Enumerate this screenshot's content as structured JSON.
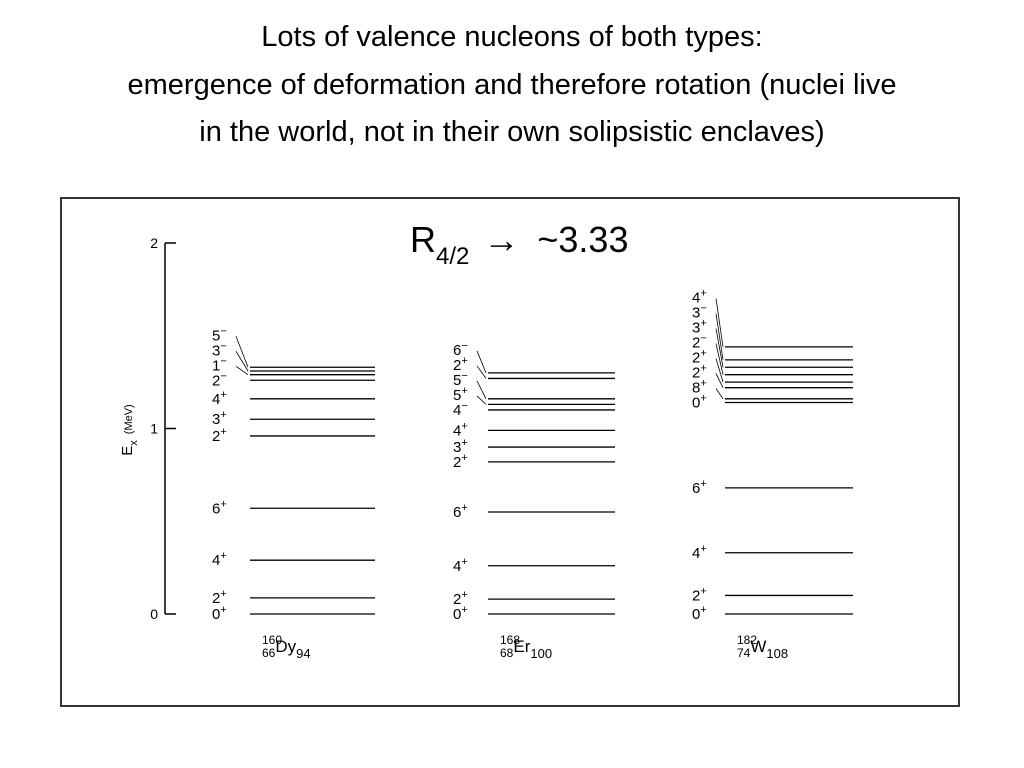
{
  "title": {
    "lines": [
      "Lots of valence nucleons of both types:",
      "emergence of deformation and therefore rotation (nuclei live",
      "in the world, not in their own solipsistic enclaves)"
    ]
  },
  "annotation": {
    "symbol": "R",
    "subscript": "4/2",
    "arrow": "→",
    "value": "~3.33"
  },
  "axis": {
    "symbol": "E",
    "subscript": "x",
    "unit": "(MeV)",
    "ylim": [
      0,
      2
    ],
    "ticks": [
      0,
      1,
      2
    ]
  },
  "nuclei": [
    {
      "mass": "160",
      "z": "66",
      "symbol": "Dy",
      "n": "94",
      "levels": [
        {
          "spin": "0",
          "parity": "+",
          "energy": 0
        },
        {
          "spin": "2",
          "parity": "+",
          "energy": 0.087
        },
        {
          "spin": "4",
          "parity": "+",
          "energy": 0.29
        },
        {
          "spin": "6",
          "parity": "+",
          "energy": 0.57
        },
        {
          "spin": "2",
          "parity": "+",
          "energy": 0.96
        },
        {
          "spin": "3",
          "parity": "+",
          "energy": 1.05
        },
        {
          "spin": "4",
          "parity": "+",
          "energy": 1.16
        },
        {
          "spin": "2",
          "parity": "−",
          "energy": 1.26
        },
        {
          "spin": "1",
          "parity": "−",
          "energy": 1.29
        },
        {
          "spin": "3",
          "parity": "−",
          "energy": 1.31
        },
        {
          "spin": "5",
          "parity": "−",
          "energy": 1.33
        }
      ]
    },
    {
      "mass": "168",
      "z": "68",
      "symbol": "Er",
      "n": "100",
      "levels": [
        {
          "spin": "0",
          "parity": "+",
          "energy": 0
        },
        {
          "spin": "2",
          "parity": "+",
          "energy": 0.08
        },
        {
          "spin": "4",
          "parity": "+",
          "energy": 0.26
        },
        {
          "spin": "6",
          "parity": "+",
          "energy": 0.55
        },
        {
          "spin": "2",
          "parity": "+",
          "energy": 0.82
        },
        {
          "spin": "3",
          "parity": "+",
          "energy": 0.9
        },
        {
          "spin": "4",
          "parity": "+",
          "energy": 0.99
        },
        {
          "spin": "4",
          "parity": "−",
          "energy": 1.1
        },
        {
          "spin": "5",
          "parity": "+",
          "energy": 1.13
        },
        {
          "spin": "5",
          "parity": "−",
          "energy": 1.16
        },
        {
          "spin": "2",
          "parity": "+",
          "energy": 1.27
        },
        {
          "spin": "6",
          "parity": "−",
          "energy": 1.3
        }
      ]
    },
    {
      "mass": "182",
      "z": "74",
      "symbol": "W",
      "n": "108",
      "levels": [
        {
          "spin": "0",
          "parity": "+",
          "energy": 0
        },
        {
          "spin": "2",
          "parity": "+",
          "energy": 0.1
        },
        {
          "spin": "4",
          "parity": "+",
          "energy": 0.33
        },
        {
          "spin": "6",
          "parity": "+",
          "energy": 0.68
        },
        {
          "spin": "0",
          "parity": "+",
          "energy": 1.14
        },
        {
          "spin": "8",
          "parity": "+",
          "energy": 1.16
        },
        {
          "spin": "2",
          "parity": "+",
          "energy": 1.22
        },
        {
          "spin": "2",
          "parity": "+",
          "energy": 1.25
        },
        {
          "spin": "2",
          "parity": "−",
          "energy": 1.29
        },
        {
          "spin": "3",
          "parity": "+",
          "energy": 1.33
        },
        {
          "spin": "3",
          "parity": "−",
          "energy": 1.37
        },
        {
          "spin": "4",
          "parity": "+",
          "energy": 1.44
        }
      ]
    }
  ]
}
